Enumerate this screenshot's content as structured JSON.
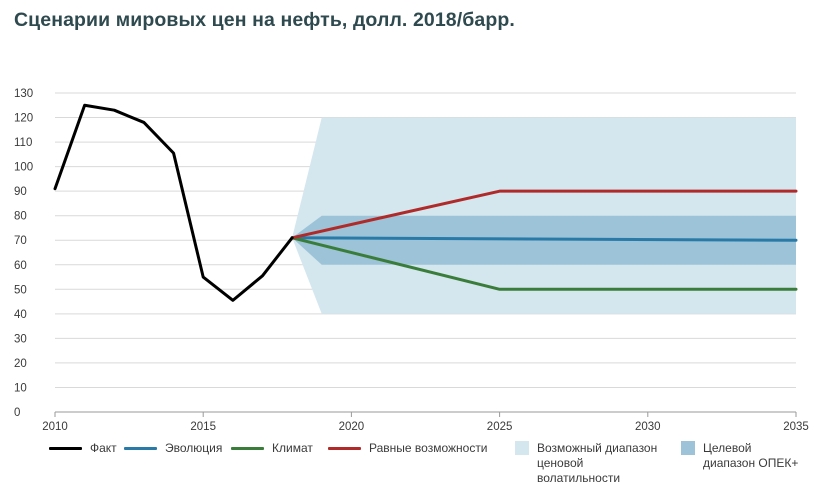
{
  "title": "Сценарии мировых цен на нефть, долл. 2018/барр.",
  "colors": {
    "fact": "#000000",
    "evolution": "#2a7aa8",
    "climate": "#3a7d3a",
    "equal": "#b02a2a",
    "volatility_band": "#d4e6ee",
    "opec_band": "#9cc3d7",
    "grid": "#d9d9d9",
    "axis": "#9a9a9a"
  },
  "chart_data": {
    "type": "line",
    "title": "Сценарии мировых цен на нефть, долл. 2018/барр.",
    "xlim": [
      2010,
      2035
    ],
    "ylim": [
      0,
      130
    ],
    "x_ticks": [
      "2010",
      "2015",
      "2020",
      "2025",
      "2030",
      "2035"
    ],
    "y_ticks": [
      "0",
      "10",
      "20",
      "30",
      "40",
      "50",
      "60",
      "70",
      "80",
      "90",
      "100",
      "110",
      "120",
      "130"
    ],
    "grid": true,
    "legend_position": "bottom",
    "series": [
      {
        "name": "Факт",
        "key": "fact",
        "x": [
          2010,
          2011,
          2012,
          2013,
          2014,
          2015,
          2016,
          2017,
          2018
        ],
        "y": [
          91,
          125,
          123,
          118,
          105.5,
          55,
          45.5,
          55.5,
          71
        ]
      },
      {
        "name": "Эволюция",
        "key": "evolution",
        "x": [
          2018,
          2035
        ],
        "y": [
          71,
          70
        ]
      },
      {
        "name": "Климат",
        "key": "climate",
        "x": [
          2018,
          2025,
          2035
        ],
        "y": [
          71,
          50,
          50
        ]
      },
      {
        "name": "Равные возможности",
        "key": "equal",
        "x": [
          2018,
          2025,
          2035
        ],
        "y": [
          71,
          90,
          90
        ]
      }
    ],
    "bands": [
      {
        "name": "Возможный диапазон ценовой волатильности",
        "key": "volatility_band",
        "x": [
          2018,
          2019,
          2035
        ],
        "upper": [
          71,
          120,
          120
        ],
        "lower": [
          71,
          40,
          40
        ]
      },
      {
        "name": "Целевой диапазон ОПЕК+",
        "key": "opec_band",
        "x": [
          2018,
          2019,
          2035
        ],
        "upper": [
          71,
          80,
          80
        ],
        "lower": [
          71,
          60,
          60
        ]
      }
    ]
  },
  "legend": [
    {
      "label": "Факт",
      "kind": "line",
      "color_key": "fact"
    },
    {
      "label": "Эволюция",
      "kind": "line",
      "color_key": "evolution"
    },
    {
      "label": "Климат",
      "kind": "line",
      "color_key": "climate"
    },
    {
      "label": "Равные возможности",
      "kind": "line",
      "color_key": "equal"
    },
    {
      "label": "Возможный диапазон\nценовой\nволатильности",
      "kind": "box",
      "color_key": "volatility_band"
    },
    {
      "label": "Целевой\nдиапазон ОПЕК+",
      "kind": "box",
      "color_key": "opec_band"
    }
  ]
}
